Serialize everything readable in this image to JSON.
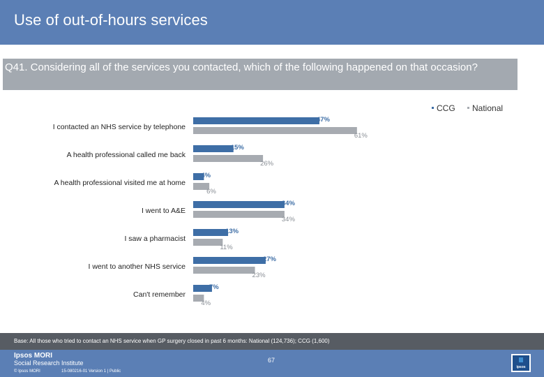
{
  "slide": {
    "title": "Use of out-of-hours services",
    "question": "Q41. Considering all of the services you contacted, which of the following happened on that occasion?",
    "base_note": "Base: All those who tried to contact an NHS service when GP surgery closed in past 6 months: National (124,736); CCG (1,600)",
    "page_number": "67",
    "footer": {
      "logo_line1": "Ipsos MORI",
      "logo_line2": "Social Research Institute",
      "copyright": "© Ipsos MORI",
      "job_ref": "15-080216-01 Version 1 | Public",
      "badge_text": "ipsos"
    }
  },
  "colors": {
    "ccg": "#3e6ea6",
    "national": "#a7abb1",
    "title_bg": "#5b7fb5"
  },
  "chart_data": {
    "type": "bar",
    "orientation": "horizontal",
    "categories": [
      "I contacted an NHS service by telephone",
      "A health professional called me back",
      "A health professional visited me at home",
      "I went to A&E",
      "I saw a pharmacist",
      "I went to another NHS service",
      "Can't remember"
    ],
    "series": [
      {
        "name": "CCG",
        "values": [
          47,
          15,
          4,
          34,
          13,
          27,
          7
        ]
      },
      {
        "name": "National",
        "values": [
          61,
          26,
          6,
          34,
          11,
          23,
          4
        ]
      }
    ],
    "value_suffix": "%",
    "legend_position": "top-right",
    "grid": false
  }
}
